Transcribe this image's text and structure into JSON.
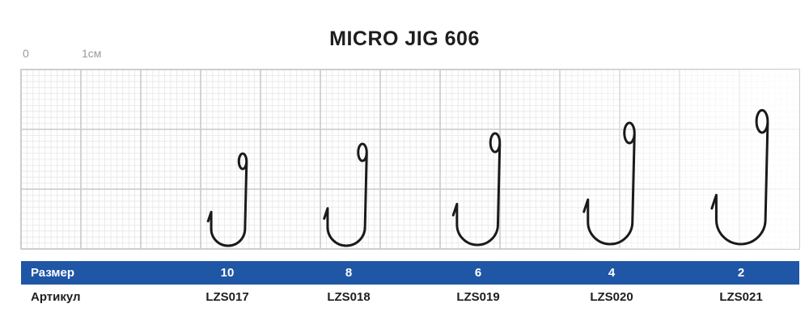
{
  "title": "MICRO JIG 606",
  "scale": {
    "zero": "0",
    "unit": "1см"
  },
  "table": {
    "size_header": "Размер",
    "article_header": "Артикул",
    "hooks": [
      {
        "size": "10",
        "article": "LZS017"
      },
      {
        "size": "8",
        "article": "LZS018"
      },
      {
        "size": "6",
        "article": "LZS019"
      },
      {
        "size": "4",
        "article": "LZS020"
      },
      {
        "size": "2",
        "article": "LZS021"
      }
    ]
  },
  "colors": {
    "table_bar": "#1f56a5",
    "grid_major": "#c9c9c9",
    "grid_minor": "#e6e6e6",
    "hook": "#1a1a1a"
  }
}
